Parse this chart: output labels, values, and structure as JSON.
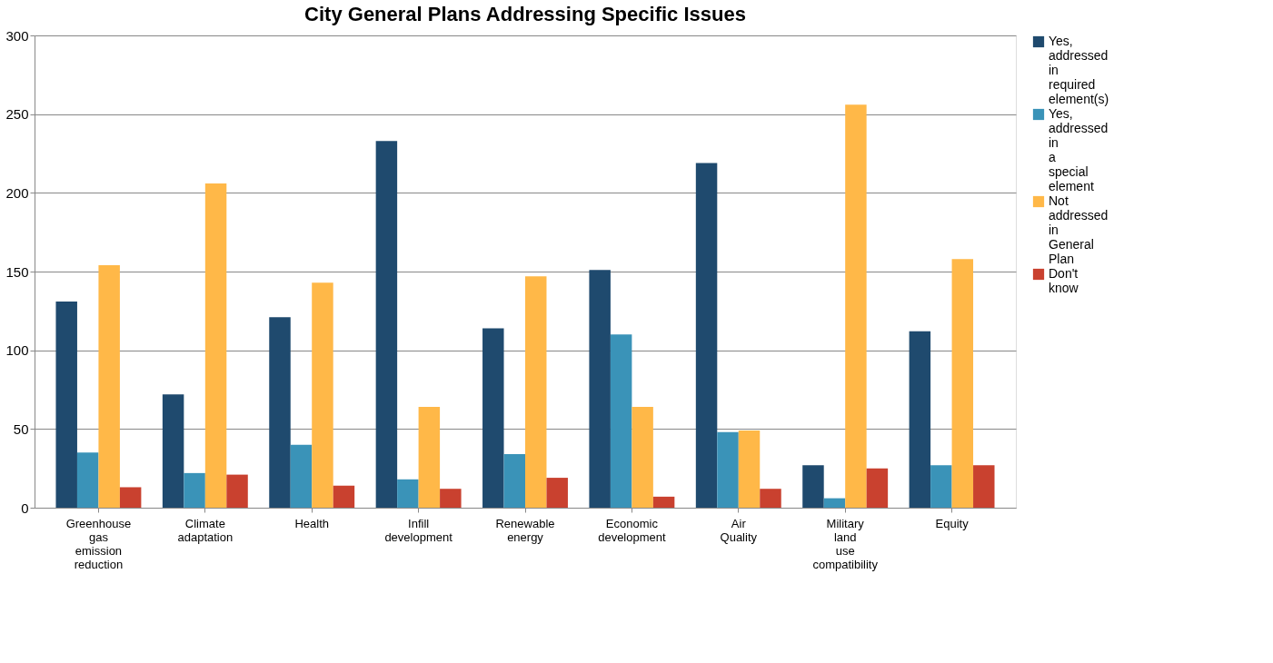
{
  "chart_data": {
    "type": "bar",
    "title": "City General Plans Addressing Specific Issues",
    "categories": [
      "Greenhouse gas emission reduction",
      "Climate adaptation",
      "Health",
      "Infill development",
      "Renewable energy",
      "Economic development",
      "Air Quality",
      "Military land use compatibility",
      "Equity"
    ],
    "series": [
      {
        "name": "Yes, addressed in required element(s)",
        "color": "#1f4a6e",
        "values": [
          131,
          72,
          121,
          233,
          114,
          151,
          219,
          27,
          112
        ]
      },
      {
        "name": "Yes, addressed in a special element",
        "color": "#3a93b8",
        "values": [
          35,
          22,
          40,
          18,
          34,
          110,
          48,
          6,
          27
        ]
      },
      {
        "name": "Not addressed in General Plan",
        "color": "#ffb848",
        "values": [
          154,
          206,
          143,
          64,
          147,
          64,
          49,
          256,
          158
        ]
      },
      {
        "name": "Don't know",
        "color": "#c9412f",
        "values": [
          13,
          21,
          14,
          12,
          19,
          7,
          12,
          25,
          27
        ]
      }
    ],
    "ylim": [
      0,
      300
    ],
    "yticks": [
      0,
      50,
      100,
      150,
      200,
      250,
      300
    ],
    "grid": "y",
    "legend": "right"
  }
}
